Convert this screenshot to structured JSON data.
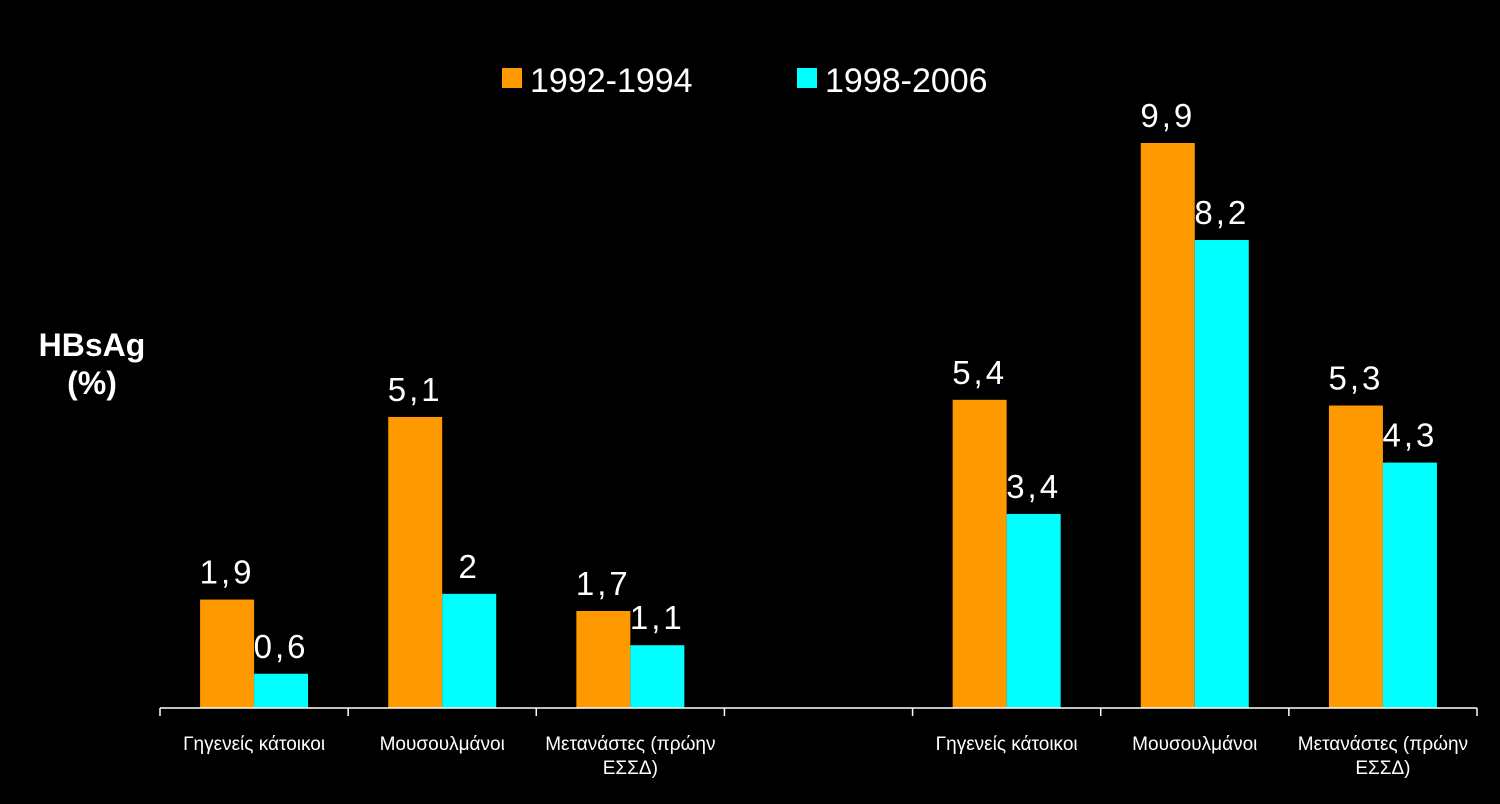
{
  "chart_data": {
    "type": "bar",
    "ylabel": [
      "HBsAg",
      "(%)"
    ],
    "categories": [
      [
        "Γηγενείς κάτοικοι"
      ],
      [
        "Μουσουλμάνοι"
      ],
      [
        "Μετανάστες (πρώην",
        "ΕΣΣΔ)"
      ],
      [
        ""
      ],
      [
        "Γηγενείς κάτοικοι"
      ],
      [
        "Μουσουλμάνοι"
      ],
      [
        "Μετανάστες (πρώην",
        "ΕΣΣΔ)"
      ]
    ],
    "series": [
      {
        "name": "1992-1994",
        "color": "#FF9900",
        "values": [
          1.9,
          5.1,
          1.7,
          null,
          5.4,
          9.9,
          5.3
        ],
        "labels": [
          "1,9",
          "5,1",
          "1,7",
          "",
          "5,4",
          "9,9",
          "5,3"
        ]
      },
      {
        "name": "1998-2006",
        "color": "#00FFFF",
        "values": [
          0.6,
          2,
          1.1,
          null,
          3.4,
          8.2,
          4.3
        ],
        "labels": [
          "0,6",
          "2",
          "1,1",
          "",
          "3,4",
          "8,2",
          "4,3"
        ]
      }
    ],
    "ylim": [
      0,
      10
    ],
    "legend_position": "top-center",
    "grid": false
  }
}
